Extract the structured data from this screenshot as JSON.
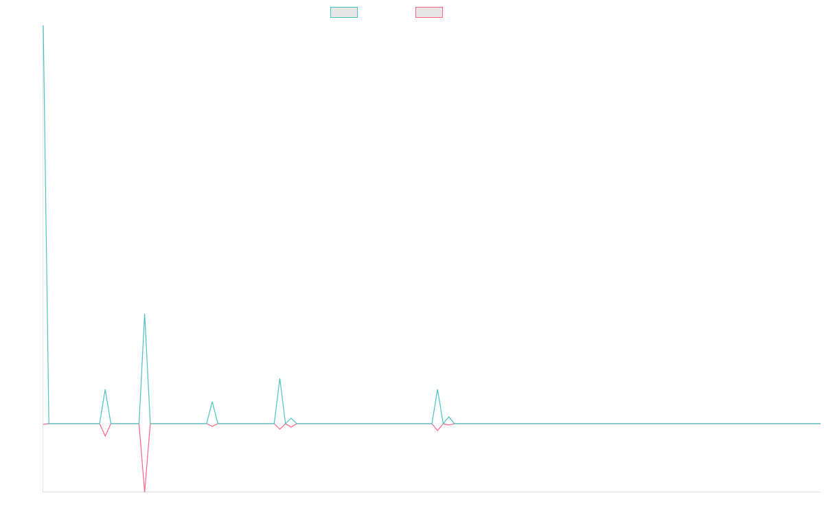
{
  "chart_data": {
    "type": "line",
    "series": [
      {
        "color": "#4bc0c0",
        "values": [
          580,
          0,
          0,
          0,
          0,
          0,
          0,
          0,
          0,
          0,
          0,
          50,
          0,
          0,
          0,
          0,
          0,
          0,
          160,
          0,
          0,
          0,
          0,
          0,
          0,
          0,
          0,
          0,
          0,
          0,
          32,
          0,
          0,
          0,
          0,
          0,
          0,
          0,
          0,
          0,
          0,
          0,
          66,
          0,
          8,
          0,
          0,
          0,
          0,
          0,
          0,
          0,
          0,
          0,
          0,
          0,
          0,
          0,
          0,
          0,
          0,
          0,
          0,
          0,
          0,
          0,
          0,
          0,
          0,
          0,
          50,
          0,
          10,
          0,
          0,
          0,
          0,
          0,
          0,
          0,
          0,
          0,
          0,
          0,
          0,
          0,
          0,
          0,
          0,
          0,
          0,
          0,
          0,
          0,
          0,
          0,
          0,
          0,
          0,
          0,
          0,
          0,
          0,
          0,
          0,
          0,
          0,
          0,
          0,
          0,
          0,
          0,
          0,
          0,
          0,
          0,
          0,
          0,
          0,
          0,
          0,
          0,
          0,
          0,
          0,
          0,
          0,
          0,
          0,
          0,
          0,
          0,
          0,
          0,
          0,
          0,
          0,
          0,
          0
        ]
      },
      {
        "color": "#ff6384",
        "values": [
          -1,
          0,
          0,
          0,
          0,
          0,
          0,
          0,
          0,
          0,
          0,
          -18,
          0,
          0,
          0,
          0,
          0,
          0,
          -100,
          0,
          0,
          0,
          0,
          0,
          0,
          0,
          0,
          0,
          0,
          0,
          -4,
          0,
          0,
          0,
          0,
          0,
          0,
          0,
          0,
          0,
          0,
          0,
          -8,
          0,
          -5,
          0,
          0,
          0,
          0,
          0,
          0,
          0,
          0,
          0,
          0,
          0,
          0,
          0,
          0,
          0,
          0,
          0,
          0,
          0,
          0,
          0,
          0,
          0,
          0,
          0,
          -10,
          0,
          -2,
          0,
          0,
          0,
          0,
          0,
          0,
          0,
          0,
          0,
          0,
          0,
          0,
          0,
          0,
          0,
          0,
          0,
          0,
          0,
          0,
          0,
          0,
          0,
          0,
          0,
          0,
          0,
          0,
          0,
          0,
          0,
          0,
          0,
          0,
          0,
          0,
          0,
          0,
          0,
          0,
          0,
          0,
          0,
          0,
          0,
          0,
          0,
          0,
          0,
          0,
          0,
          0,
          0,
          0,
          0,
          0,
          0,
          0,
          0,
          0,
          0,
          0,
          0,
          0,
          0,
          0
        ]
      }
    ],
    "ylim": [
      -100,
      580
    ]
  }
}
